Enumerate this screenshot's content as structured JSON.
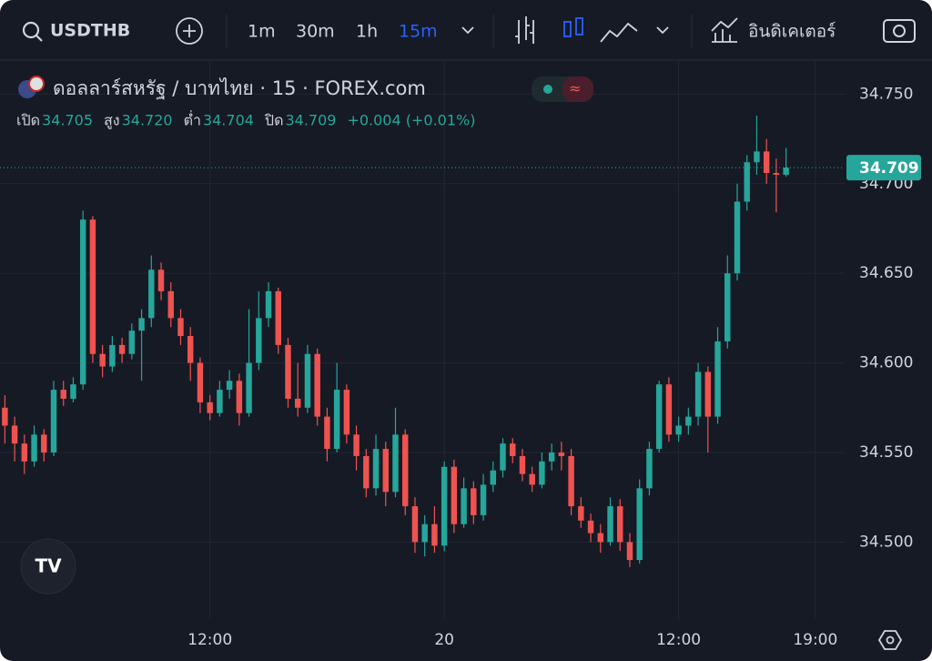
{
  "toolbar": {
    "symbol": "USDTHB",
    "intervals": [
      "1m",
      "30m",
      "1h",
      "15m"
    ],
    "active_interval": 3,
    "indicators": "อินดิเคเตอร์"
  },
  "chart_data": {
    "type": "candlestick",
    "title": "ดอลลาร์สหรัฐ / บาทไทย · 15 · FOREX.com",
    "legend": [
      {
        "label": "เปิด",
        "value": "34.705"
      },
      {
        "label": "สูง",
        "value": "34.720"
      },
      {
        "label": "ต่ำ",
        "value": "34.704"
      },
      {
        "label": "ปิด",
        "value": "34.709"
      }
    ],
    "change": "+0.004 (+0.01%)",
    "up_color": "#26a69a",
    "down_color": "#ef5350",
    "open": [
      34.575,
      34.565,
      34.555,
      34.545,
      34.56,
      34.55,
      34.585,
      34.58,
      34.588,
      34.68,
      34.605,
      34.598,
      34.61,
      34.605,
      34.618,
      34.625,
      34.652,
      34.64,
      34.625,
      34.615,
      34.6,
      34.578,
      34.572,
      34.585,
      34.59,
      34.572,
      34.6,
      34.625,
      34.64,
      34.61,
      34.58,
      34.575,
      34.605,
      34.57,
      34.552,
      34.585,
      34.56,
      34.548,
      34.53,
      34.552,
      34.528,
      34.56,
      34.52,
      34.5,
      34.51,
      34.498,
      34.542,
      34.51,
      34.53,
      34.515,
      34.532,
      34.54,
      34.555,
      34.548,
      34.538,
      34.532,
      34.545,
      34.55,
      34.548,
      34.52,
      34.512,
      34.505,
      34.5,
      34.52,
      34.5,
      34.49,
      34.53,
      34.552,
      34.588,
      34.56,
      34.565,
      34.57,
      34.595,
      34.57,
      34.612,
      34.65,
      34.69,
      34.712,
      34.718,
      34.706,
      34.705
    ],
    "high": [
      34.582,
      34.57,
      34.56,
      34.565,
      34.563,
      34.59,
      34.59,
      34.592,
      34.685,
      34.682,
      34.61,
      34.615,
      34.614,
      34.622,
      34.63,
      34.66,
      34.656,
      34.645,
      34.63,
      34.62,
      34.603,
      34.582,
      34.59,
      34.596,
      34.594,
      34.63,
      34.64,
      34.645,
      34.642,
      34.614,
      34.6,
      34.61,
      34.608,
      34.575,
      34.6,
      34.588,
      34.565,
      34.552,
      34.56,
      34.556,
      34.575,
      34.563,
      34.525,
      34.515,
      34.52,
      34.545,
      34.546,
      34.536,
      34.534,
      34.538,
      34.545,
      34.558,
      34.558,
      34.552,
      34.542,
      34.55,
      34.555,
      34.556,
      34.552,
      34.525,
      34.516,
      34.51,
      34.525,
      34.524,
      34.505,
      34.535,
      34.556,
      34.59,
      34.592,
      34.57,
      34.575,
      34.6,
      34.598,
      34.62,
      34.66,
      34.7,
      34.716,
      34.738,
      34.725,
      34.714,
      34.72
    ],
    "low": [
      34.555,
      34.545,
      34.538,
      34.542,
      34.545,
      34.548,
      34.576,
      34.578,
      34.585,
      34.6,
      34.592,
      34.595,
      34.6,
      34.602,
      34.59,
      34.62,
      34.635,
      34.62,
      34.61,
      34.59,
      34.572,
      34.568,
      34.57,
      34.58,
      34.565,
      34.57,
      34.596,
      34.62,
      34.605,
      34.575,
      34.57,
      34.572,
      34.565,
      34.545,
      34.55,
      34.555,
      34.54,
      34.525,
      34.526,
      34.52,
      34.525,
      34.515,
      34.494,
      34.492,
      34.494,
      34.495,
      34.505,
      34.508,
      34.51,
      34.512,
      34.528,
      34.536,
      34.544,
      34.534,
      34.528,
      34.53,
      34.54,
      34.54,
      34.515,
      34.508,
      34.5,
      34.494,
      34.498,
      34.495,
      34.486,
      34.488,
      34.526,
      34.55,
      34.556,
      34.556,
      34.56,
      34.565,
      34.55,
      34.566,
      34.608,
      34.646,
      34.685,
      34.705,
      34.7,
      34.684,
      34.704
    ],
    "close": [
      34.565,
      34.555,
      34.545,
      34.56,
      34.55,
      34.585,
      34.58,
      34.588,
      34.68,
      34.605,
      34.598,
      34.61,
      34.605,
      34.618,
      34.625,
      34.652,
      34.64,
      34.625,
      34.615,
      34.6,
      34.578,
      34.572,
      34.585,
      34.59,
      34.572,
      34.6,
      34.625,
      34.64,
      34.61,
      34.58,
      34.575,
      34.605,
      34.57,
      34.552,
      34.585,
      34.56,
      34.548,
      34.53,
      34.552,
      34.528,
      34.56,
      34.52,
      34.5,
      34.51,
      34.498,
      34.542,
      34.51,
      34.53,
      34.515,
      34.532,
      34.54,
      34.555,
      34.548,
      34.538,
      34.532,
      34.545,
      34.55,
      34.548,
      34.52,
      34.512,
      34.505,
      34.5,
      34.52,
      34.5,
      34.49,
      34.53,
      34.552,
      34.588,
      34.56,
      34.565,
      34.57,
      34.595,
      34.57,
      34.612,
      34.65,
      34.69,
      34.712,
      34.718,
      34.706,
      34.705,
      34.709
    ],
    "xlim": [
      -0.5,
      86
    ],
    "xticks": [
      {
        "value": 21,
        "label": "12:00"
      },
      {
        "value": 45,
        "label": "20"
      },
      {
        "value": 69,
        "label": "12:00"
      },
      {
        "value": 83,
        "label": "19:00"
      }
    ],
    "ylim": [
      34.457,
      34.769
    ],
    "yticks": [
      {
        "value": 34.5,
        "label": "34.500"
      },
      {
        "value": 34.55,
        "label": "34.550"
      },
      {
        "value": 34.6,
        "label": "34.600"
      },
      {
        "value": 34.65,
        "label": "34.650"
      },
      {
        "value": 34.7,
        "label": "34.700"
      },
      {
        "value": 34.75,
        "label": "34.750"
      }
    ],
    "grid": true
  }
}
